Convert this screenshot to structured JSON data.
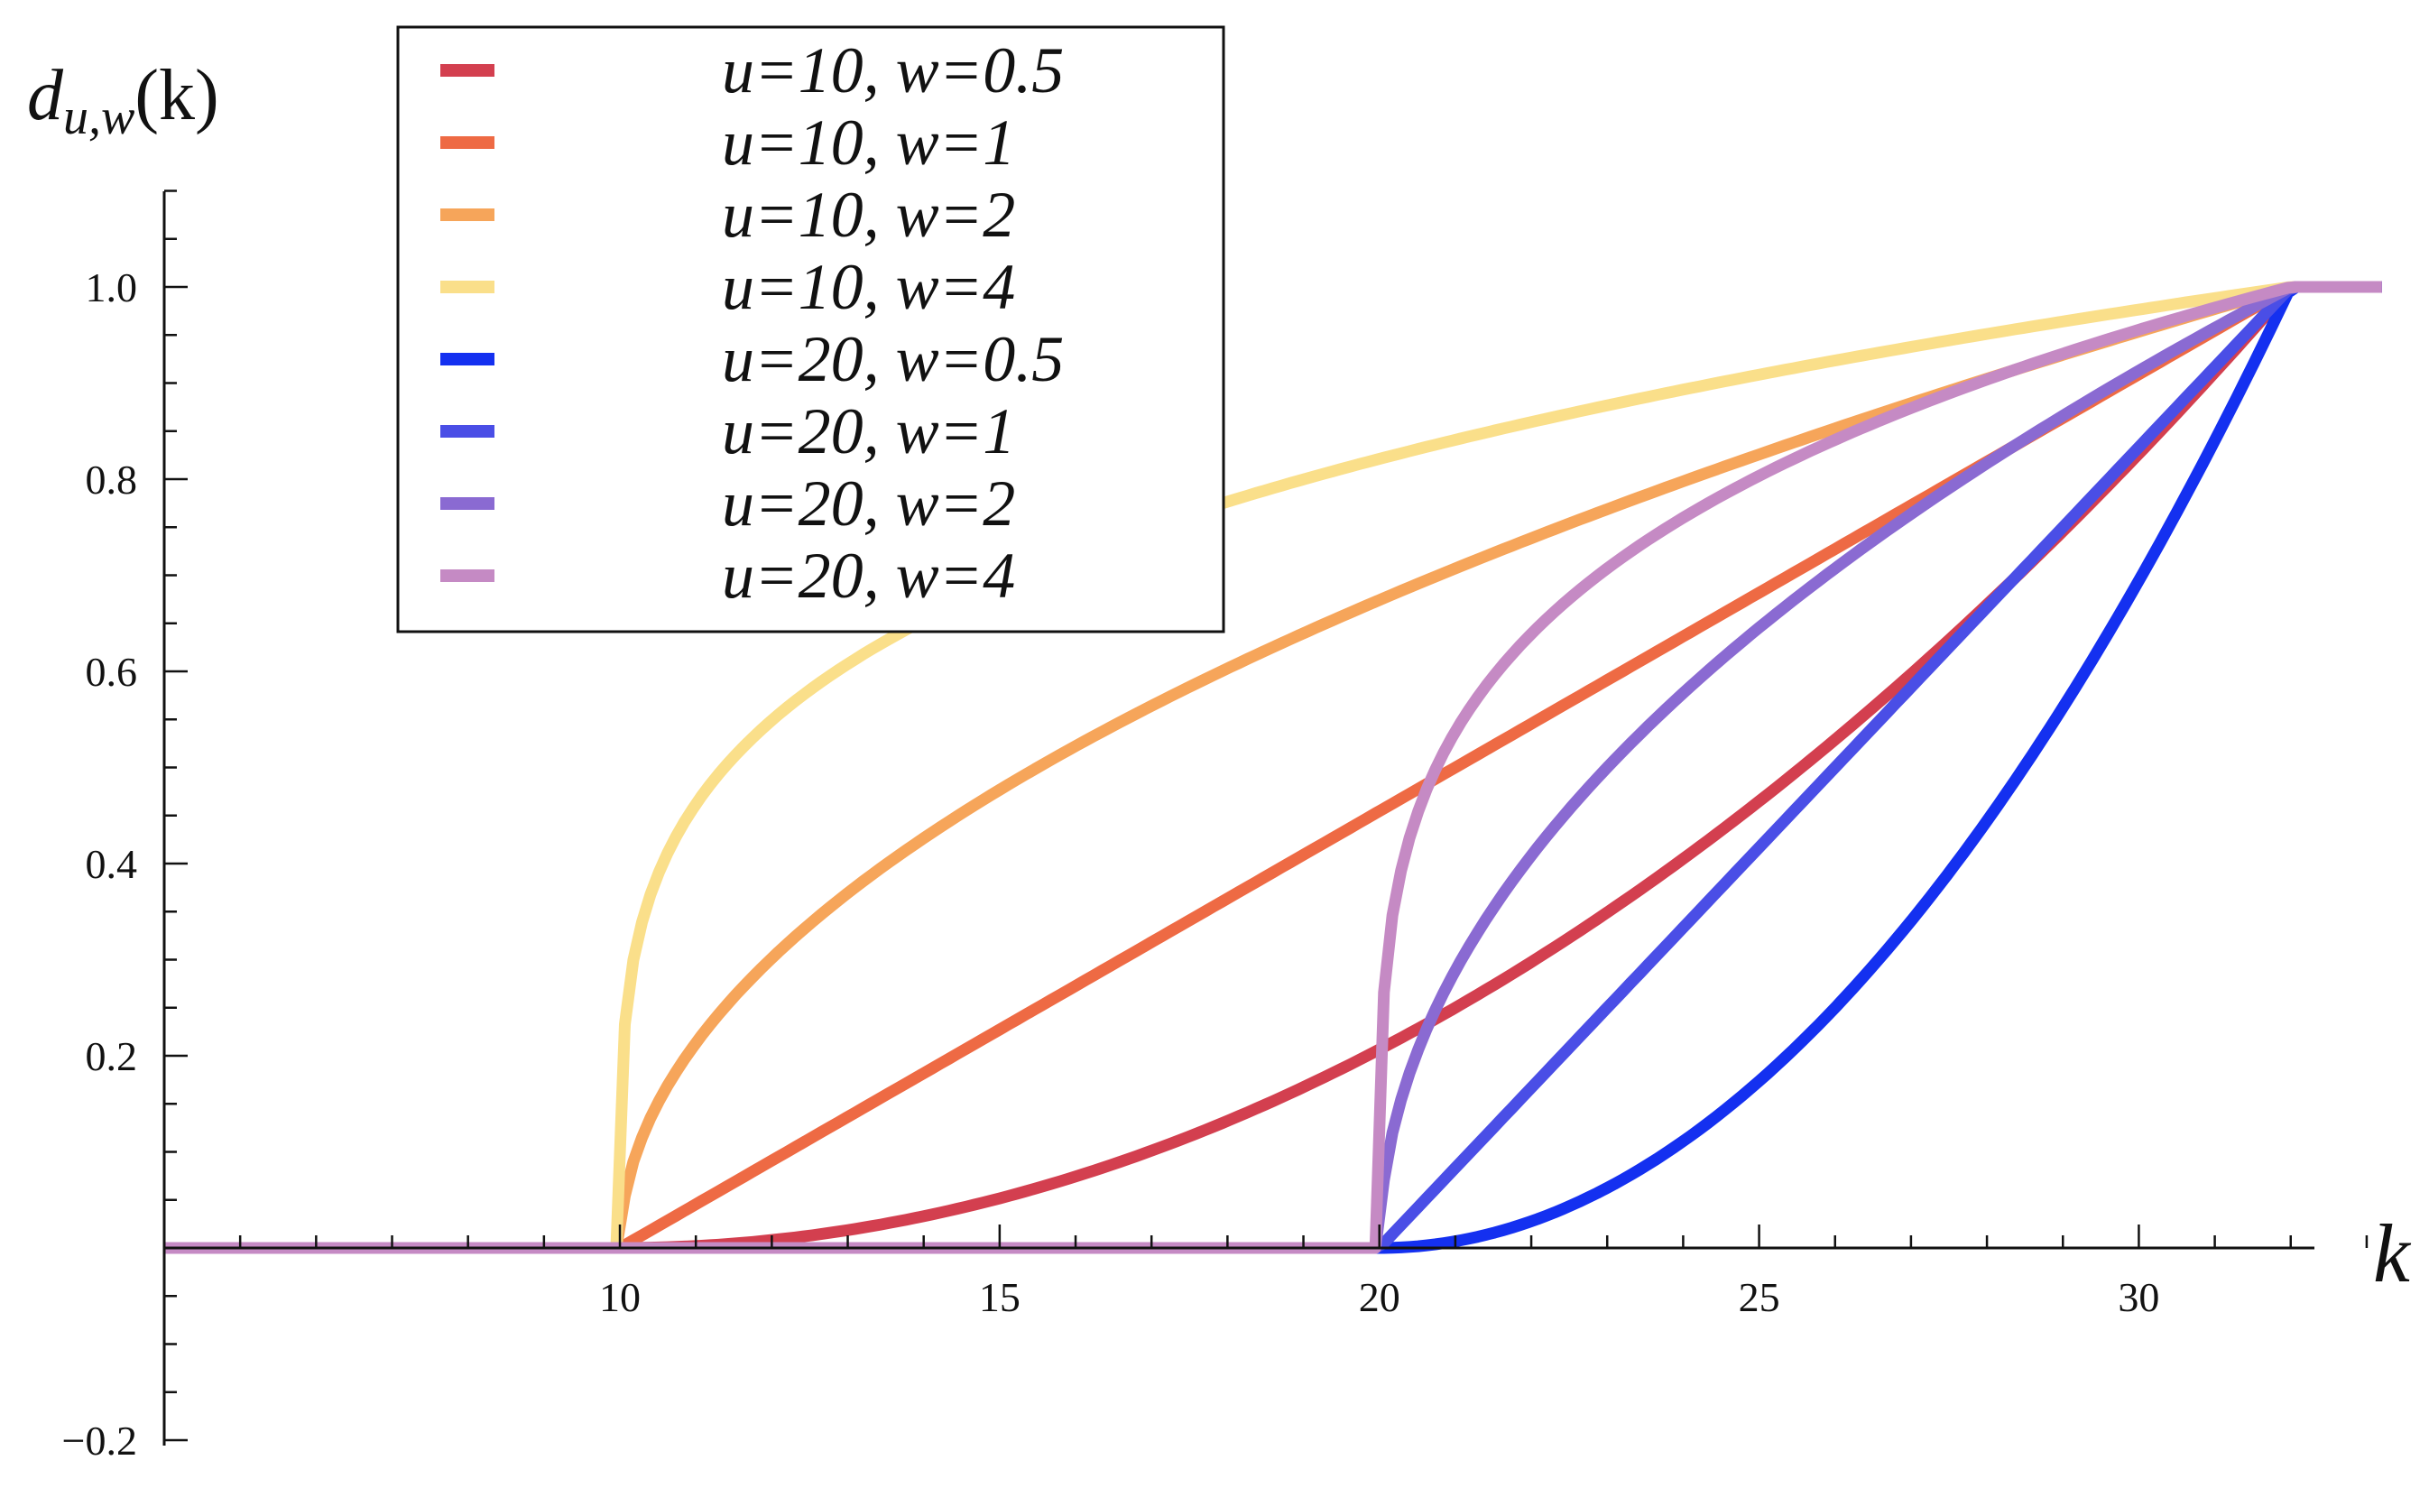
{
  "chart_data": {
    "type": "line",
    "xlabel": "k",
    "ylabel": "d",
    "ylabel_sub": "u,w",
    "ylabel_arg": "(k)",
    "xlim": [
      4,
      33.2
    ],
    "ylim": [
      -0.2,
      1.1
    ],
    "x_ticks": [
      10,
      15,
      20,
      25,
      30
    ],
    "x_tick_labels": [
      "10",
      "15",
      "20",
      "25",
      "30"
    ],
    "y_ticks": [
      -0.2,
      0.2,
      0.4,
      0.6,
      0.8,
      1.0
    ],
    "y_tick_labels": [
      "−0.2",
      "0.2",
      "0.4",
      "0.6",
      "0.8",
      "1.0"
    ],
    "grid": false,
    "legend_position": "top-left",
    "k_max": 32,
    "series": [
      {
        "name": "u=10, w=0.5",
        "u": 10,
        "w": 0.5,
        "color": "#d33f4f"
      },
      {
        "name": "u=10, w=1",
        "u": 10,
        "w": 1,
        "color": "#ee6a44"
      },
      {
        "name": "u=10, w=2",
        "u": 10,
        "w": 2,
        "color": "#f6a55a"
      },
      {
        "name": "u=10, w=4",
        "u": 10,
        "w": 4,
        "color": "#fadf8a"
      },
      {
        "name": "u=20, w=0.5",
        "u": 20,
        "w": 0.5,
        "color": "#1430f0"
      },
      {
        "name": "u=20, w=1",
        "u": 20,
        "w": 1,
        "color": "#4a4ee6"
      },
      {
        "name": "u=20, w=2",
        "u": 20,
        "w": 2,
        "color": "#8a6ad2"
      },
      {
        "name": "u=20, w=4",
        "u": 20,
        "w": 4,
        "color": "#c58ac4"
      }
    ]
  }
}
